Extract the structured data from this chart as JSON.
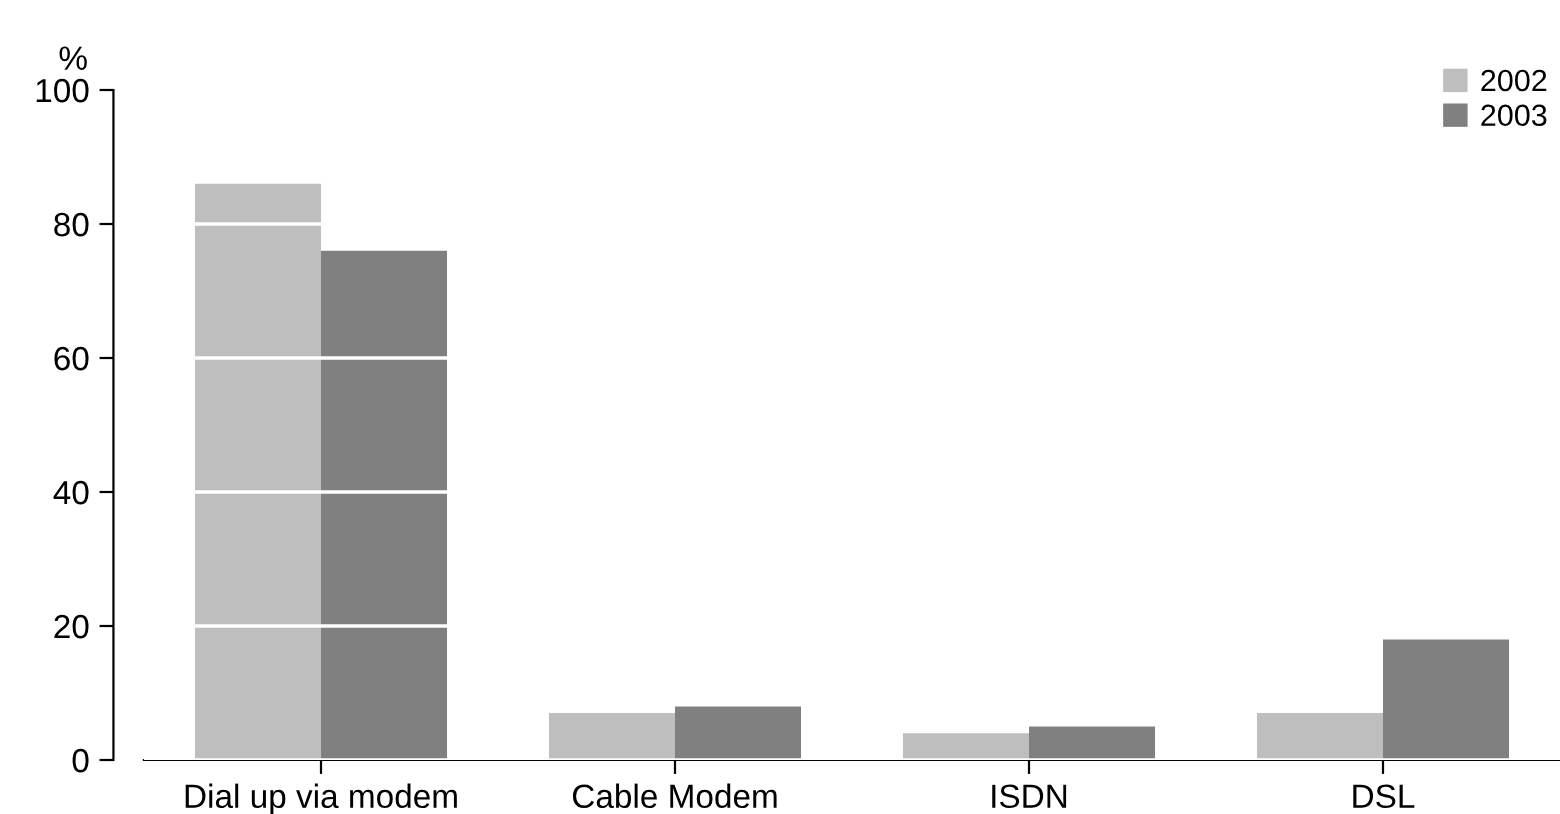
{
  "chart_data": {
    "type": "bar",
    "ylabel": "%",
    "categories": [
      "Dial up via modem",
      "Cable Modem",
      "ISDN",
      "DSL"
    ],
    "series": [
      {
        "name": "2002",
        "color": "#bebebe",
        "values": [
          86,
          7,
          4,
          7
        ]
      },
      {
        "name": "2003",
        "color": "#808080",
        "values": [
          76,
          8,
          5,
          18
        ]
      }
    ],
    "ylim": [
      0,
      100
    ],
    "yticks": [
      0,
      20,
      40,
      60,
      80,
      100
    ],
    "grid": "y",
    "legend": "top right"
  }
}
